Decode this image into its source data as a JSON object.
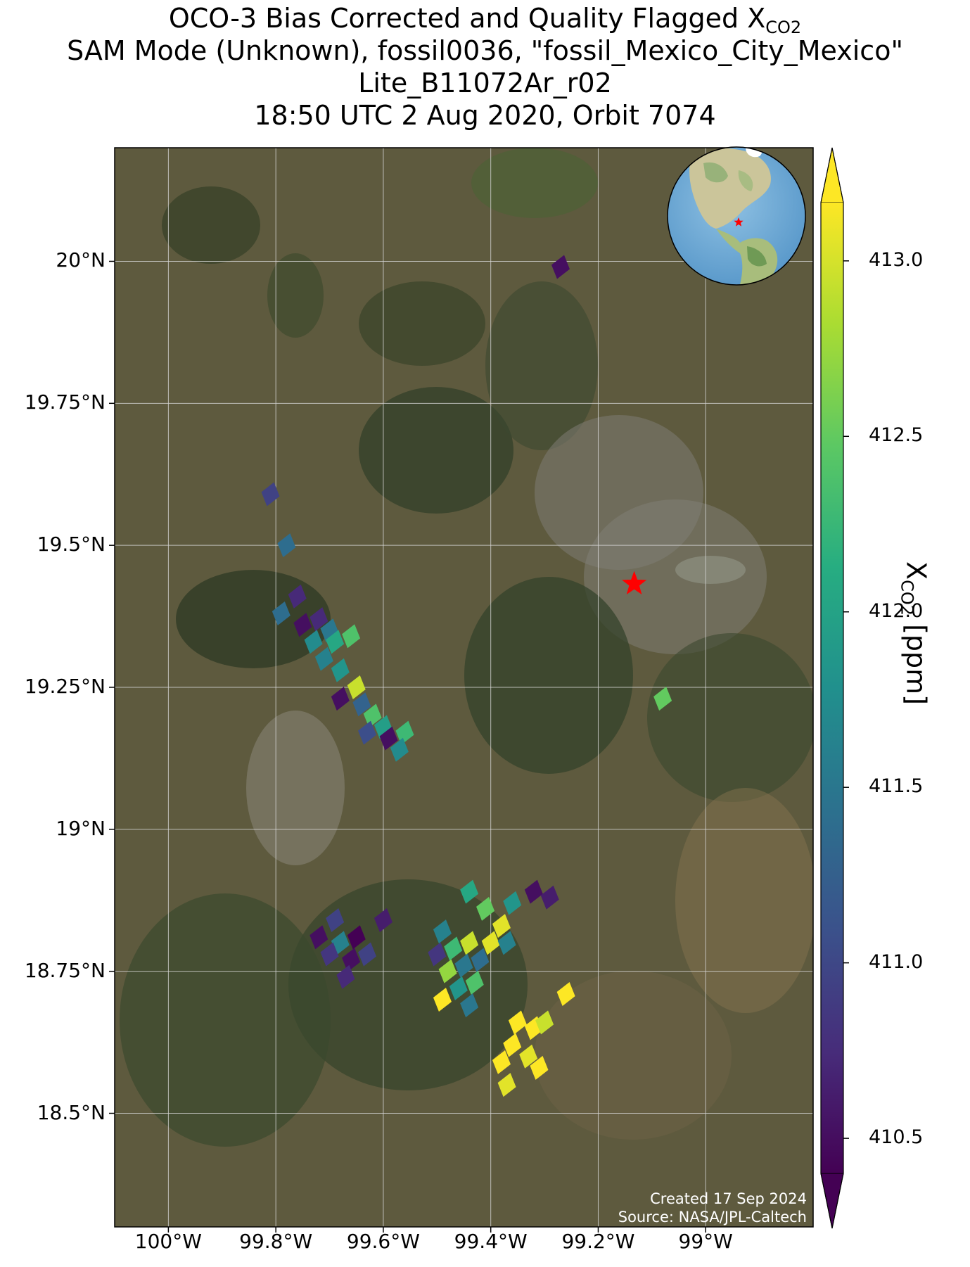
{
  "title": {
    "line1_prefix": "OCO-3 Bias Corrected and Quality Flagged X",
    "line1_sub": "CO2",
    "line2": "SAM Mode (Unknown), fossil0036, \"fossil_Mexico_City_Mexico\"",
    "line3": "Lite_B11072Ar_r02",
    "line4": "18:50 UTC 2 Aug 2020, Orbit 7074"
  },
  "map": {
    "lon_range": [
      -100.1,
      -98.8
    ],
    "lat_range": [
      18.3,
      20.2
    ],
    "lon_ticks": [
      {
        "value": -100.0,
        "label": "100°W"
      },
      {
        "value": -99.8,
        "label": "99.8°W"
      },
      {
        "value": -99.6,
        "label": "99.6°W"
      },
      {
        "value": -99.4,
        "label": "99.4°W"
      },
      {
        "value": -99.2,
        "label": "99.2°W"
      },
      {
        "value": -99.0,
        "label": "99°W"
      }
    ],
    "lat_ticks": [
      {
        "value": 20.0,
        "label": "20°N"
      },
      {
        "value": 19.75,
        "label": "19.75°N"
      },
      {
        "value": 19.5,
        "label": "19.5°N"
      },
      {
        "value": 19.25,
        "label": "19.25°N"
      },
      {
        "value": 19.0,
        "label": "19°N"
      },
      {
        "value": 18.75,
        "label": "18.75°N"
      },
      {
        "value": 18.5,
        "label": "18.5°N"
      }
    ],
    "target_marker": {
      "lon": -99.133,
      "lat": 19.432,
      "color": "#ff0000",
      "icon": "star-icon"
    },
    "background": "satellite-imagery",
    "inset": "globe-icon"
  },
  "chart_data": {
    "type": "scatter",
    "series": [
      {
        "points": [
          {
            "lon": -99.27,
            "lat": 19.99,
            "xco2": 410.6
          },
          {
            "lon": -99.81,
            "lat": 19.59,
            "xco2": 411.0
          },
          {
            "lon": -99.78,
            "lat": 19.5,
            "xco2": 411.4
          },
          {
            "lon": -99.76,
            "lat": 19.41,
            "xco2": 410.8
          },
          {
            "lon": -99.79,
            "lat": 19.38,
            "xco2": 411.4
          },
          {
            "lon": -99.75,
            "lat": 19.36,
            "xco2": 410.6
          },
          {
            "lon": -99.72,
            "lat": 19.37,
            "xco2": 410.8
          },
          {
            "lon": -99.7,
            "lat": 19.35,
            "xco2": 411.5
          },
          {
            "lon": -99.73,
            "lat": 19.33,
            "xco2": 411.7
          },
          {
            "lon": -99.69,
            "lat": 19.33,
            "xco2": 412.0
          },
          {
            "lon": -99.66,
            "lat": 19.34,
            "xco2": 412.3
          },
          {
            "lon": -99.71,
            "lat": 19.3,
            "xco2": 411.6
          },
          {
            "lon": -99.68,
            "lat": 19.28,
            "xco2": 411.8
          },
          {
            "lon": -99.65,
            "lat": 19.25,
            "xco2": 412.8
          },
          {
            "lon": -99.68,
            "lat": 19.23,
            "xco2": 410.6
          },
          {
            "lon": -99.64,
            "lat": 19.22,
            "xco2": 411.3
          },
          {
            "lon": -99.62,
            "lat": 19.2,
            "xco2": 412.3
          },
          {
            "lon": -99.6,
            "lat": 19.18,
            "xco2": 411.9
          },
          {
            "lon": -99.63,
            "lat": 19.17,
            "xco2": 411.1
          },
          {
            "lon": -99.59,
            "lat": 19.16,
            "xco2": 410.6
          },
          {
            "lon": -99.56,
            "lat": 19.17,
            "xco2": 412.2
          },
          {
            "lon": -99.57,
            "lat": 19.14,
            "xco2": 411.7
          },
          {
            "lon": -99.08,
            "lat": 19.23,
            "xco2": 412.4
          },
          {
            "lon": -99.69,
            "lat": 18.84,
            "xco2": 411.0
          },
          {
            "lon": -99.72,
            "lat": 18.81,
            "xco2": 410.6
          },
          {
            "lon": -99.68,
            "lat": 18.8,
            "xco2": 411.6
          },
          {
            "lon": -99.65,
            "lat": 18.81,
            "xco2": 410.5
          },
          {
            "lon": -99.7,
            "lat": 18.78,
            "xco2": 410.9
          },
          {
            "lon": -99.66,
            "lat": 18.77,
            "xco2": 410.6
          },
          {
            "lon": -99.63,
            "lat": 18.78,
            "xco2": 411.0
          },
          {
            "lon": -99.67,
            "lat": 18.74,
            "xco2": 410.8
          },
          {
            "lon": -99.6,
            "lat": 18.84,
            "xco2": 410.7
          },
          {
            "lon": -99.49,
            "lat": 18.82,
            "xco2": 411.6
          },
          {
            "lon": -99.47,
            "lat": 18.79,
            "xco2": 412.2
          },
          {
            "lon": -99.5,
            "lat": 18.78,
            "xco2": 410.9
          },
          {
            "lon": -99.44,
            "lat": 18.8,
            "xco2": 412.8
          },
          {
            "lon": -99.45,
            "lat": 18.76,
            "xco2": 411.5
          },
          {
            "lon": -99.48,
            "lat": 18.75,
            "xco2": 412.6
          },
          {
            "lon": -99.42,
            "lat": 18.77,
            "xco2": 411.4
          },
          {
            "lon": -99.4,
            "lat": 18.8,
            "xco2": 412.9
          },
          {
            "lon": -99.43,
            "lat": 18.73,
            "xco2": 412.3
          },
          {
            "lon": -99.46,
            "lat": 18.72,
            "xco2": 411.8
          },
          {
            "lon": -99.41,
            "lat": 18.86,
            "xco2": 412.4
          },
          {
            "lon": -99.44,
            "lat": 18.89,
            "xco2": 412.0
          },
          {
            "lon": -99.38,
            "lat": 18.83,
            "xco2": 412.9
          },
          {
            "lon": -99.36,
            "lat": 18.87,
            "xco2": 411.8
          },
          {
            "lon": -99.37,
            "lat": 18.8,
            "xco2": 411.6
          },
          {
            "lon": -99.49,
            "lat": 18.7,
            "xco2": 413.0
          },
          {
            "lon": -99.44,
            "lat": 18.69,
            "xco2": 411.5
          },
          {
            "lon": -99.32,
            "lat": 18.89,
            "xco2": 410.6
          },
          {
            "lon": -99.29,
            "lat": 18.88,
            "xco2": 410.7
          },
          {
            "lon": -99.35,
            "lat": 18.66,
            "xco2": 413.0
          },
          {
            "lon": -99.32,
            "lat": 18.65,
            "xco2": 413.0
          },
          {
            "lon": -99.3,
            "lat": 18.66,
            "xco2": 412.8
          },
          {
            "lon": -99.26,
            "lat": 18.71,
            "xco2": 413.0
          },
          {
            "lon": -99.38,
            "lat": 18.59,
            "xco2": 413.0
          },
          {
            "lon": -99.37,
            "lat": 18.55,
            "xco2": 412.9
          },
          {
            "lon": -99.36,
            "lat": 18.62,
            "xco2": 413.0
          },
          {
            "lon": -99.33,
            "lat": 18.6,
            "xco2": 412.9
          },
          {
            "lon": -99.31,
            "lat": 18.58,
            "xco2": 413.0
          }
        ]
      }
    ]
  },
  "colorbar": {
    "label_prefix": "X",
    "label_sub": "CO2",
    "label_suffix": " [ppm]",
    "vmin": 410.4,
    "vmax": 413.1,
    "ticks": [
      {
        "value": 413.0,
        "label": "413.0"
      },
      {
        "value": 412.5,
        "label": "412.5"
      },
      {
        "value": 412.0,
        "label": "412.0"
      },
      {
        "value": 411.5,
        "label": "411.5"
      },
      {
        "value": 411.0,
        "label": "411.0"
      },
      {
        "value": 410.5,
        "label": "410.5"
      }
    ],
    "colormap": "viridis"
  },
  "credit": {
    "line1": "Created 17 Sep 2024",
    "line2": "Source: NASA/JPL-Caltech"
  }
}
